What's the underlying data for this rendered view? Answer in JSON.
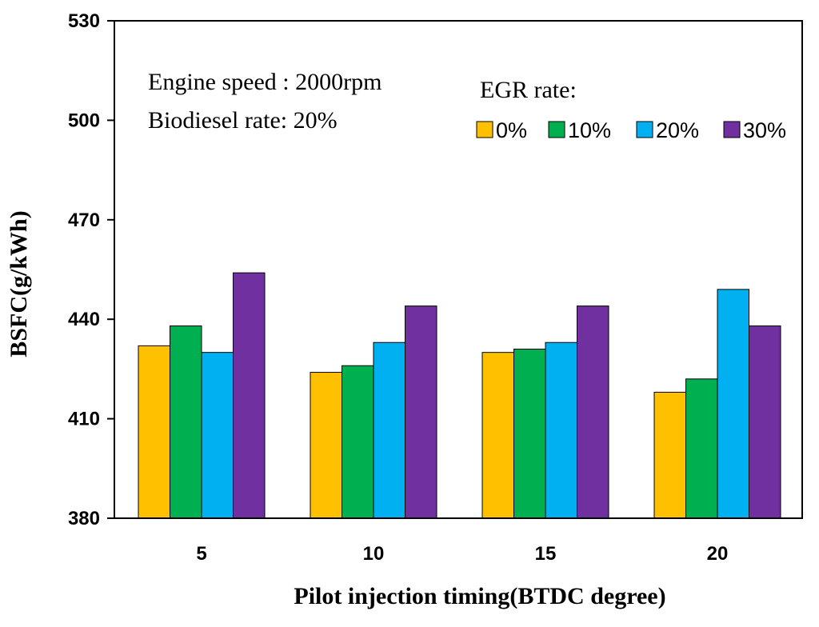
{
  "chart_data": {
    "type": "bar",
    "title": "",
    "xlabel": "Pilot injection timing(BTDC  degree)",
    "ylabel": "BSFC(g/kWh)",
    "ylim": [
      380,
      530
    ],
    "yticks": [
      380,
      410,
      440,
      470,
      500,
      530
    ],
    "categories": [
      "5",
      "10",
      "15",
      "20"
    ],
    "grid": false,
    "legend_title": "EGR rate:",
    "legend_position": "top-right",
    "annotations": [
      "Engine speed : 2000rpm",
      "Biodiesel rate: 20%"
    ],
    "series": [
      {
        "name": "0%",
        "color": "#FFC000",
        "values": [
          432,
          424,
          430,
          418
        ]
      },
      {
        "name": "10%",
        "color": "#00B050",
        "values": [
          438,
          426,
          431,
          422
        ]
      },
      {
        "name": "20%",
        "color": "#00B0F0",
        "values": [
          430,
          433,
          433,
          449
        ]
      },
      {
        "name": "30%",
        "color": "#7030A0",
        "values": [
          454,
          444,
          444,
          438
        ]
      }
    ]
  }
}
